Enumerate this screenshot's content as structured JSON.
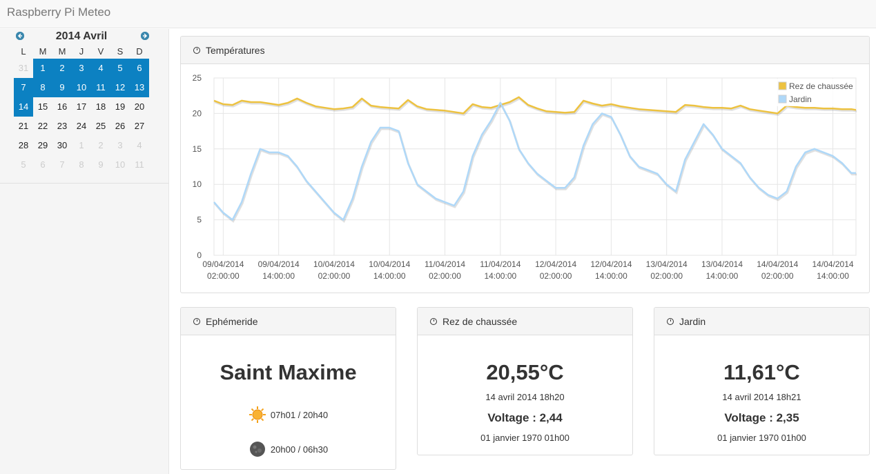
{
  "app": {
    "title": "Raspberry Pi Meteo"
  },
  "calendar": {
    "title": "2014 Avril",
    "dow": [
      "L",
      "M",
      "M",
      "J",
      "V",
      "S",
      "D"
    ],
    "weeks": [
      [
        {
          "d": "31",
          "o": true
        },
        {
          "d": "1",
          "h": true
        },
        {
          "d": "2",
          "h": true
        },
        {
          "d": "3",
          "h": true
        },
        {
          "d": "4",
          "h": true
        },
        {
          "d": "5",
          "h": true
        },
        {
          "d": "6",
          "h": true
        }
      ],
      [
        {
          "d": "7",
          "h": true
        },
        {
          "d": "8",
          "h": true
        },
        {
          "d": "9",
          "h": true
        },
        {
          "d": "10",
          "h": true
        },
        {
          "d": "11",
          "h": true
        },
        {
          "d": "12",
          "h": true
        },
        {
          "d": "13",
          "h": true
        }
      ],
      [
        {
          "d": "14",
          "h": true
        },
        {
          "d": "15"
        },
        {
          "d": "16"
        },
        {
          "d": "17"
        },
        {
          "d": "18"
        },
        {
          "d": "19"
        },
        {
          "d": "20"
        }
      ],
      [
        {
          "d": "21"
        },
        {
          "d": "22"
        },
        {
          "d": "23"
        },
        {
          "d": "24"
        },
        {
          "d": "25"
        },
        {
          "d": "26"
        },
        {
          "d": "27"
        }
      ],
      [
        {
          "d": "28"
        },
        {
          "d": "29"
        },
        {
          "d": "30"
        },
        {
          "d": "1",
          "o": true
        },
        {
          "d": "2",
          "o": true
        },
        {
          "d": "3",
          "o": true
        },
        {
          "d": "4",
          "o": true
        }
      ],
      [
        {
          "d": "5",
          "o": true
        },
        {
          "d": "6",
          "o": true
        },
        {
          "d": "7",
          "o": true
        },
        {
          "d": "8",
          "o": true
        },
        {
          "d": "9",
          "o": true
        },
        {
          "d": "10",
          "o": true
        },
        {
          "d": "11",
          "o": true
        }
      ]
    ],
    "highlight_color": "#0c81c2"
  },
  "temperatures": {
    "heading": "Températures",
    "chart_data": {
      "type": "line",
      "title": "",
      "ylim": [
        0,
        25
      ],
      "yticks": [
        0,
        5,
        10,
        15,
        20,
        25
      ],
      "grid": true,
      "legend": "top-right",
      "xlim": [
        "2014-04-09 00:00",
        "2014-04-14 19:00"
      ],
      "xticks": [
        {
          "date": "09/04/2014",
          "time": "02:00:00",
          "t": "2014-04-09 02:00"
        },
        {
          "date": "09/04/2014",
          "time": "14:00:00",
          "t": "2014-04-09 14:00"
        },
        {
          "date": "10/04/2014",
          "time": "02:00:00",
          "t": "2014-04-10 02:00"
        },
        {
          "date": "10/04/2014",
          "time": "14:00:00",
          "t": "2014-04-10 14:00"
        },
        {
          "date": "11/04/2014",
          "time": "02:00:00",
          "t": "2014-04-11 02:00"
        },
        {
          "date": "11/04/2014",
          "time": "14:00:00",
          "t": "2014-04-11 14:00"
        },
        {
          "date": "12/04/2014",
          "time": "02:00:00",
          "t": "2014-04-12 02:00"
        },
        {
          "date": "12/04/2014",
          "time": "14:00:00",
          "t": "2014-04-12 14:00"
        },
        {
          "date": "13/04/2014",
          "time": "02:00:00",
          "t": "2014-04-13 02:00"
        },
        {
          "date": "13/04/2014",
          "time": "14:00:00",
          "t": "2014-04-13 14:00"
        },
        {
          "date": "14/04/2014",
          "time": "02:00:00",
          "t": "2014-04-14 02:00"
        },
        {
          "date": "14/04/2014",
          "time": "14:00:00",
          "t": "2014-04-14 14:00"
        }
      ],
      "series": [
        {
          "name": "Rez de chaussée",
          "color": "#edc240",
          "x": [
            "2014-04-09 00:00",
            "2014-04-09 02:00",
            "2014-04-09 04:00",
            "2014-04-09 06:00",
            "2014-04-09 08:00",
            "2014-04-09 10:00",
            "2014-04-09 12:00",
            "2014-04-09 14:00",
            "2014-04-09 16:00",
            "2014-04-09 18:00",
            "2014-04-09 20:00",
            "2014-04-09 22:00",
            "2014-04-10 00:00",
            "2014-04-10 02:00",
            "2014-04-10 04:00",
            "2014-04-10 06:00",
            "2014-04-10 08:00",
            "2014-04-10 10:00",
            "2014-04-10 12:00",
            "2014-04-10 14:00",
            "2014-04-10 16:00",
            "2014-04-10 18:00",
            "2014-04-10 20:00",
            "2014-04-10 22:00",
            "2014-04-11 00:00",
            "2014-04-11 02:00",
            "2014-04-11 04:00",
            "2014-04-11 06:00",
            "2014-04-11 08:00",
            "2014-04-11 10:00",
            "2014-04-11 12:00",
            "2014-04-11 14:00",
            "2014-04-11 16:00",
            "2014-04-11 18:00",
            "2014-04-11 20:00",
            "2014-04-11 22:00",
            "2014-04-12 00:00",
            "2014-04-12 02:00",
            "2014-04-12 04:00",
            "2014-04-12 06:00",
            "2014-04-12 08:00",
            "2014-04-12 10:00",
            "2014-04-12 12:00",
            "2014-04-12 14:00",
            "2014-04-12 16:00",
            "2014-04-12 18:00",
            "2014-04-12 20:00",
            "2014-04-12 22:00",
            "2014-04-13 00:00",
            "2014-04-13 02:00",
            "2014-04-13 04:00",
            "2014-04-13 06:00",
            "2014-04-13 08:00",
            "2014-04-13 10:00",
            "2014-04-13 12:00",
            "2014-04-13 14:00",
            "2014-04-13 16:00",
            "2014-04-13 18:00",
            "2014-04-13 20:00",
            "2014-04-13 22:00",
            "2014-04-14 00:00",
            "2014-04-14 02:00",
            "2014-04-14 04:00",
            "2014-04-14 06:00",
            "2014-04-14 08:00",
            "2014-04-14 10:00",
            "2014-04-14 12:00",
            "2014-04-14 14:00",
            "2014-04-14 16:00",
            "2014-04-14 18:00",
            "2014-04-14 19:00"
          ],
          "values": [
            21.8,
            21.3,
            21.2,
            21.8,
            21.6,
            21.6,
            21.4,
            21.2,
            21.5,
            22.1,
            21.5,
            21.0,
            20.8,
            20.6,
            20.7,
            20.9,
            22.1,
            21.1,
            20.9,
            20.8,
            20.7,
            21.9,
            21.0,
            20.6,
            20.5,
            20.4,
            20.2,
            20.0,
            21.3,
            20.9,
            20.8,
            21.2,
            21.6,
            22.3,
            21.2,
            20.7,
            20.3,
            20.2,
            20.1,
            20.2,
            21.8,
            21.4,
            21.1,
            21.3,
            21.0,
            20.8,
            20.6,
            20.5,
            20.4,
            20.3,
            20.2,
            21.2,
            21.1,
            20.9,
            20.8,
            20.8,
            20.7,
            21.1,
            20.6,
            20.4,
            20.2,
            20.0,
            21.1,
            20.9,
            20.8,
            20.8,
            20.7,
            20.7,
            20.6,
            20.6,
            20.5
          ]
        },
        {
          "name": "Jardin",
          "color": "#afd8f8",
          "x": [
            "2014-04-09 00:00",
            "2014-04-09 02:00",
            "2014-04-09 04:00",
            "2014-04-09 06:00",
            "2014-04-09 08:00",
            "2014-04-09 10:00",
            "2014-04-09 12:00",
            "2014-04-09 14:00",
            "2014-04-09 16:00",
            "2014-04-09 18:00",
            "2014-04-09 20:00",
            "2014-04-09 22:00",
            "2014-04-10 00:00",
            "2014-04-10 02:00",
            "2014-04-10 04:00",
            "2014-04-10 06:00",
            "2014-04-10 08:00",
            "2014-04-10 10:00",
            "2014-04-10 12:00",
            "2014-04-10 14:00",
            "2014-04-10 16:00",
            "2014-04-10 18:00",
            "2014-04-10 20:00",
            "2014-04-10 22:00",
            "2014-04-11 00:00",
            "2014-04-11 02:00",
            "2014-04-11 04:00",
            "2014-04-11 06:00",
            "2014-04-11 08:00",
            "2014-04-11 10:00",
            "2014-04-11 12:00",
            "2014-04-11 14:00",
            "2014-04-11 16:00",
            "2014-04-11 18:00",
            "2014-04-11 20:00",
            "2014-04-11 22:00",
            "2014-04-12 00:00",
            "2014-04-12 02:00",
            "2014-04-12 04:00",
            "2014-04-12 06:00",
            "2014-04-12 08:00",
            "2014-04-12 10:00",
            "2014-04-12 12:00",
            "2014-04-12 14:00",
            "2014-04-12 16:00",
            "2014-04-12 18:00",
            "2014-04-12 20:00",
            "2014-04-12 22:00",
            "2014-04-13 00:00",
            "2014-04-13 02:00",
            "2014-04-13 04:00",
            "2014-04-13 06:00",
            "2014-04-13 08:00",
            "2014-04-13 10:00",
            "2014-04-13 12:00",
            "2014-04-13 14:00",
            "2014-04-13 16:00",
            "2014-04-13 18:00",
            "2014-04-13 20:00",
            "2014-04-13 22:00",
            "2014-04-14 00:00",
            "2014-04-14 02:00",
            "2014-04-14 04:00",
            "2014-04-14 06:00",
            "2014-04-14 08:00",
            "2014-04-14 10:00",
            "2014-04-14 12:00",
            "2014-04-14 14:00",
            "2014-04-14 16:00",
            "2014-04-14 18:00",
            "2014-04-14 19:00"
          ],
          "values": [
            7.5,
            6.0,
            5.0,
            7.5,
            11.5,
            15.0,
            14.5,
            14.5,
            14.0,
            12.5,
            10.5,
            9.0,
            7.5,
            6.0,
            5.0,
            8.0,
            12.5,
            16.0,
            18.0,
            18.0,
            17.5,
            13.0,
            10.0,
            9.0,
            8.0,
            7.5,
            7.0,
            9.0,
            14.0,
            17.0,
            19.0,
            21.5,
            19.0,
            15.0,
            13.0,
            11.5,
            10.5,
            9.5,
            9.5,
            11.0,
            15.5,
            18.5,
            20.0,
            19.5,
            17.0,
            14.0,
            12.5,
            12.0,
            11.5,
            10.0,
            9.0,
            13.5,
            16.0,
            18.5,
            17.0,
            15.0,
            14.0,
            13.0,
            11.0,
            9.5,
            8.5,
            8.0,
            9.0,
            12.5,
            14.5,
            15.0,
            14.5,
            14.0,
            13.0,
            11.6,
            11.6
          ]
        }
      ]
    }
  },
  "ephemeride": {
    "heading": "Ephémeride",
    "saint": "Saint Maxime",
    "sun_icon": "sun-icon",
    "sun_times": "07h01 / 20h40",
    "moon_icon": "moon-icon",
    "moon_times": "20h00 / 06h30"
  },
  "rez": {
    "heading": "Rez de chaussée",
    "temperature": "20,55°C",
    "datetime": "14 avril 2014 18h20",
    "voltage": "Voltage : 2,44",
    "voltage_date": "01 janvier 1970 01h00"
  },
  "jardin": {
    "heading": "Jardin",
    "temperature": "11,61°C",
    "datetime": "14 avril 2014 18h21",
    "voltage": "Voltage : 2,35",
    "voltage_date": "01 janvier 1970 01h00"
  }
}
